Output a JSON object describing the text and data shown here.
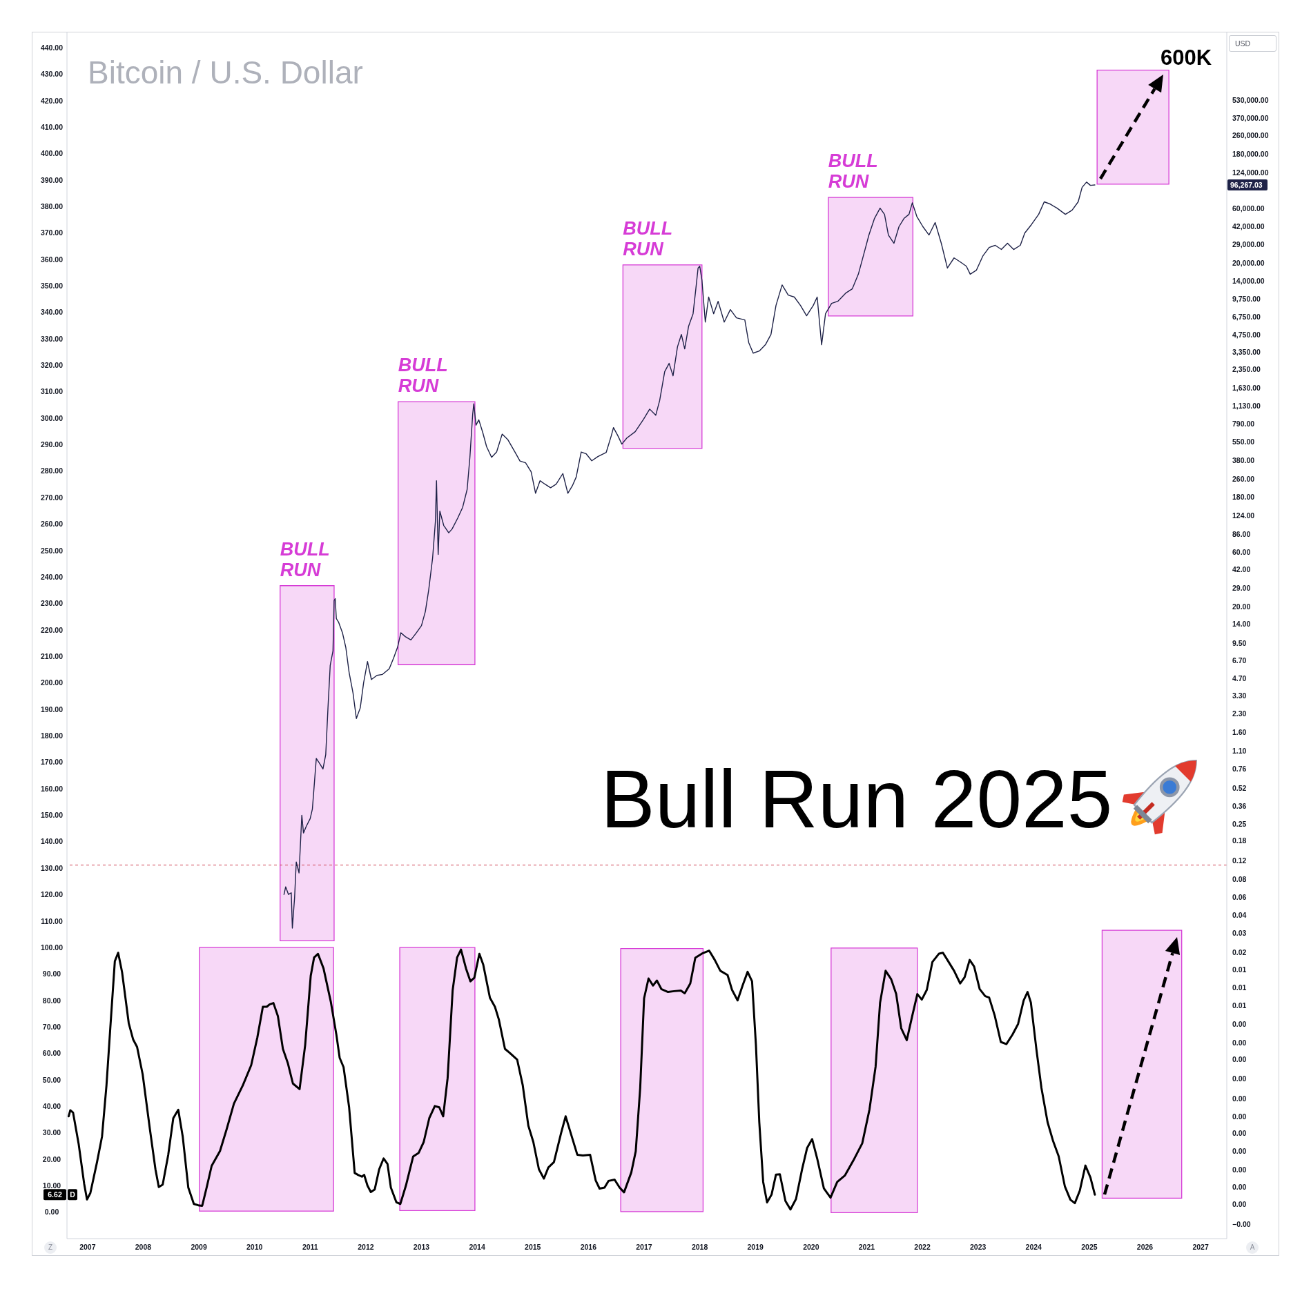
{
  "chart_data": {
    "type": "line",
    "title": "Bitcoin / U.S. Dollar",
    "subtitle": "Bull Run 2025",
    "y2label": "USD",
    "annotations": [
      "600K",
      "Z",
      "A"
    ],
    "log": "y2",
    "xlim": [
      2006.63,
      2027.47
    ],
    "xticks": [
      2007,
      2008,
      2009,
      2010,
      2011,
      2012,
      2013,
      2014,
      2015,
      2016,
      2017,
      2018,
      2019,
      2020,
      2021,
      2022,
      2023,
      2024,
      2025,
      2026,
      2027
    ],
    "ylim": [
      -10,
      446
    ],
    "yticks": [
      {
        "value": 0,
        "label": "0.00"
      },
      {
        "value": 6.62,
        "label": "6.62"
      },
      {
        "value": 10,
        "label": "10.00"
      },
      {
        "value": 20,
        "label": "20.00"
      },
      {
        "value": 30,
        "label": "30.00"
      },
      {
        "value": 40,
        "label": "40.00"
      },
      {
        "value": 50,
        "label": "50.00"
      },
      {
        "value": 60,
        "label": "60.00"
      },
      {
        "value": 70,
        "label": "70.00"
      },
      {
        "value": 80,
        "label": "80.00"
      },
      {
        "value": 90,
        "label": "90.00"
      },
      {
        "value": 100,
        "label": "100.00"
      },
      {
        "value": 110,
        "label": "110.00"
      },
      {
        "value": 120,
        "label": "120.00"
      },
      {
        "value": 130,
        "label": "130.00"
      },
      {
        "value": 140,
        "label": "140.00"
      },
      {
        "value": 150,
        "label": "150.00"
      },
      {
        "value": 160,
        "label": "160.00"
      },
      {
        "value": 170,
        "label": "170.00"
      },
      {
        "value": 180,
        "label": "180.00"
      },
      {
        "value": 190,
        "label": "190.00"
      },
      {
        "value": 200,
        "label": "200.00"
      },
      {
        "value": 210,
        "label": "210.00"
      },
      {
        "value": 220,
        "label": "220.00"
      },
      {
        "value": 230,
        "label": "230.00"
      },
      {
        "value": 240,
        "label": "240.00"
      },
      {
        "value": 250,
        "label": "250.00"
      },
      {
        "value": 260,
        "label": "260.00"
      },
      {
        "value": 270,
        "label": "270.00"
      },
      {
        "value": 280,
        "label": "280.00"
      },
      {
        "value": 290,
        "label": "290.00"
      },
      {
        "value": 300,
        "label": "300.00"
      },
      {
        "value": 310,
        "label": "310.00"
      },
      {
        "value": 320,
        "label": "320.00"
      },
      {
        "value": 330,
        "label": "330.00"
      },
      {
        "value": 340,
        "label": "340.00"
      },
      {
        "value": 350,
        "label": "350.00"
      },
      {
        "value": 360,
        "label": "360.00"
      },
      {
        "value": 370,
        "label": "370.00"
      },
      {
        "value": 380,
        "label": "380.00"
      },
      {
        "value": 390,
        "label": "390.00"
      },
      {
        "value": 400,
        "label": "400.00"
      },
      {
        "value": 410,
        "label": "410.00"
      },
      {
        "value": 420,
        "label": "420.00"
      },
      {
        "value": 430,
        "label": "430.00"
      },
      {
        "value": 440,
        "label": "440.00"
      }
    ],
    "y2lim": [
      6e-05,
      2100000
    ],
    "y2ticks": [
      {
        "value": 530000,
        "label": "530,000.00"
      },
      {
        "value": 370000,
        "label": "370,000.00"
      },
      {
        "value": 260000,
        "label": "260,000.00"
      },
      {
        "value": 180000,
        "label": "180,000.00"
      },
      {
        "value": 124000,
        "label": "124,000.00"
      },
      {
        "value": 96267.03,
        "label": "96,267.03"
      },
      {
        "value": 60000,
        "label": "60,000.00"
      },
      {
        "value": 42000,
        "label": "42,000.00"
      },
      {
        "value": 29000,
        "label": "29,000.00"
      },
      {
        "value": 20000,
        "label": "20,000.00"
      },
      {
        "value": 14000,
        "label": "14,000.00"
      },
      {
        "value": 9750,
        "label": "9,750.00"
      },
      {
        "value": 6750,
        "label": "6,750.00"
      },
      {
        "value": 4750,
        "label": "4,750.00"
      },
      {
        "value": 3350,
        "label": "3,350.00"
      },
      {
        "value": 2350,
        "label": "2,350.00"
      },
      {
        "value": 1630,
        "label": "1,630.00"
      },
      {
        "value": 1130,
        "label": "1,130.00"
      },
      {
        "value": 790,
        "label": "790.00"
      },
      {
        "value": 550,
        "label": "550.00"
      },
      {
        "value": 380,
        "label": "380.00"
      },
      {
        "value": 260,
        "label": "260.00"
      },
      {
        "value": 180,
        "label": "180.00"
      },
      {
        "value": 124,
        "label": "124.00"
      },
      {
        "value": 86,
        "label": "86.00"
      },
      {
        "value": 60,
        "label": "60.00"
      },
      {
        "value": 42,
        "label": "42.00"
      },
      {
        "value": 29,
        "label": "29.00"
      },
      {
        "value": 20,
        "label": "20.00"
      },
      {
        "value": 14,
        "label": "14.00"
      },
      {
        "value": 9.5,
        "label": "9.50"
      },
      {
        "value": 6.7,
        "label": "6.70"
      },
      {
        "value": 4.7,
        "label": "4.70"
      },
      {
        "value": 3.3,
        "label": "3.30"
      },
      {
        "value": 2.3,
        "label": "2.30"
      },
      {
        "value": 1.6,
        "label": "1.60"
      },
      {
        "value": 1.1,
        "label": "1.10"
      },
      {
        "value": 0.76,
        "label": "0.76"
      },
      {
        "value": 0.52,
        "label": "0.52"
      },
      {
        "value": 0.36,
        "label": "0.36"
      },
      {
        "value": 0.25,
        "label": "0.25"
      },
      {
        "value": 0.18,
        "label": "0.18"
      },
      {
        "value": 0.12,
        "label": "0.12"
      },
      {
        "value": 0.083,
        "label": "0.08"
      },
      {
        "value": 0.058,
        "label": "0.06"
      },
      {
        "value": 0.04,
        "label": "0.04"
      },
      {
        "value": 0.028,
        "label": "0.03"
      },
      {
        "value": 0.019,
        "label": "0.02"
      },
      {
        "value": 0.0135,
        "label": "0.01"
      },
      {
        "value": 0.0094,
        "label": "0.01"
      },
      {
        "value": 0.0065,
        "label": "0.01"
      },
      {
        "value": 0.0045,
        "label": "0.00"
      },
      {
        "value": 0.0031,
        "label": "0.00"
      },
      {
        "value": 0.0022,
        "label": "0.00"
      },
      {
        "value": 0.0015,
        "label": "0.00"
      },
      {
        "value": 0.001,
        "label": "0.00"
      },
      {
        "value": 0.0007,
        "label": "0.00"
      },
      {
        "value": 0.0005,
        "label": "0.00"
      },
      {
        "value": 0.00035,
        "label": "0.00"
      },
      {
        "value": 0.00024,
        "label": "0.00"
      },
      {
        "value": 0.00017,
        "label": "0.00"
      },
      {
        "value": 0.00012,
        "label": "0.00"
      },
      {
        "value": 8e-05,
        "label": "−0.00"
      }
    ],
    "ref_lines": [
      {
        "axis": "y2",
        "value": 0.11,
        "color": "#d04a5a",
        "line_style": "dashed"
      }
    ],
    "series": [
      {
        "type": "area",
        "axis": "y",
        "color": "#d63cd6",
        "x": [
          2009.01,
          2011.42
        ],
        "values": [
          null,
          null
        ],
        "lower": [
          0.4,
          0.4
        ],
        "upper": [
          100,
          100
        ]
      },
      {
        "type": "area",
        "axis": "y",
        "color": "#d63cd6",
        "x": [
          2012.61,
          2013.96
        ],
        "values": [
          null,
          null
        ],
        "lower": [
          0.6,
          0.6
        ],
        "upper": [
          100,
          100
        ]
      },
      {
        "type": "area",
        "axis": "y",
        "color": "#d63cd6",
        "x": [
          2016.58,
          2018.06
        ],
        "values": [
          null,
          null
        ],
        "lower": [
          0.2,
          0.2
        ],
        "upper": [
          99.6,
          99.6
        ]
      },
      {
        "type": "area",
        "axis": "y",
        "color": "#d63cd6",
        "x": [
          2020.36,
          2021.91
        ],
        "values": [
          null,
          null
        ],
        "lower": [
          -0.2,
          -0.2
        ],
        "upper": [
          99.8,
          99.8
        ]
      },
      {
        "type": "area",
        "axis": "y",
        "color": "#d63cd6",
        "x": [
          2025.23,
          2026.66
        ],
        "values": [
          null,
          null
        ],
        "lower": [
          5.3,
          5.3
        ],
        "upper": [
          106.5,
          106.5
        ]
      },
      {
        "type": "area",
        "axis": "y2",
        "name": "BULL RUN",
        "color": "#d63cd6",
        "x": [
          2010.46,
          2011.43
        ],
        "values": [
          null,
          null
        ],
        "lower": [
          0.024,
          0.024
        ],
        "upper": [
          30.4,
          30.4
        ]
      },
      {
        "type": "area",
        "axis": "y2",
        "name": "BULL RUN",
        "color": "#d63cd6",
        "x": [
          2012.58,
          2013.96
        ],
        "values": [
          null,
          null
        ],
        "lower": [
          6.2,
          6.2
        ],
        "upper": [
          1230,
          1230
        ]
      },
      {
        "type": "area",
        "axis": "y2",
        "name": "BULL RUN",
        "color": "#d63cd6",
        "x": [
          2016.62,
          2018.04
        ],
        "values": [
          null,
          null
        ],
        "lower": [
          480,
          480
        ],
        "upper": [
          19300,
          19300
        ]
      },
      {
        "type": "area",
        "axis": "y2",
        "name": "BULL RUN",
        "color": "#d63cd6",
        "x": [
          2020.31,
          2021.83
        ],
        "values": [
          null,
          null
        ],
        "lower": [
          6900,
          6900
        ],
        "upper": [
          75000,
          75000
        ]
      },
      {
        "type": "area",
        "axis": "y2",
        "color": "#d63cd6",
        "x": [
          2025.14,
          2026.43
        ],
        "values": [
          null,
          null
        ],
        "lower": [
          98000,
          98000
        ],
        "upper": [
          970000,
          970000
        ]
      },
      {
        "axis": "y2",
        "color": "#1e2247",
        "x": [
          2010.53,
          2010.56,
          2010.61,
          2010.66,
          2010.68,
          2010.72,
          2010.75,
          2010.8,
          2010.85,
          2010.88,
          2010.93,
          2011.0,
          2011.04,
          2011.11,
          2011.17,
          2011.23,
          2011.28,
          2011.32,
          2011.36,
          2011.41,
          2011.43,
          2011.45,
          2011.47,
          2011.51,
          2011.58,
          2011.64,
          2011.7,
          2011.77,
          2011.83,
          2011.9,
          2011.96,
          2012.03,
          2012.1,
          2012.2,
          2012.3,
          2012.42,
          2012.5,
          2012.57,
          2012.63,
          2012.71,
          2012.81,
          2012.91,
          2013.0,
          2013.07,
          2013.13,
          2013.2,
          2013.25,
          2013.27,
          2013.3,
          2013.33,
          2013.4,
          2013.49,
          2013.55,
          2013.65,
          2013.74,
          2013.82,
          2013.87,
          2013.92,
          2013.94,
          2013.98,
          2014.03,
          2014.1,
          2014.17,
          2014.26,
          2014.35,
          2014.45,
          2014.55,
          2014.68,
          2014.77,
          2014.87,
          2014.97,
          2015.05,
          2015.13,
          2015.22,
          2015.32,
          2015.42,
          2015.54,
          2015.63,
          2015.71,
          2015.78,
          2015.87,
          2015.96,
          2016.06,
          2016.17,
          2016.32,
          2016.41,
          2016.45,
          2016.53,
          2016.6,
          2016.69,
          2016.84,
          2016.99,
          2017.1,
          2017.21,
          2017.28,
          2017.37,
          2017.45,
          2017.52,
          2017.6,
          2017.67,
          2017.73,
          2017.8,
          2017.88,
          2017.93,
          2017.97,
          2018.0,
          2018.04,
          2018.1,
          2018.16,
          2018.25,
          2018.33,
          2018.44,
          2018.55,
          2018.66,
          2018.81,
          2018.88,
          2018.96,
          2019.07,
          2019.18,
          2019.28,
          2019.37,
          2019.48,
          2019.59,
          2019.7,
          2019.81,
          2019.92,
          2020.04,
          2020.11,
          2020.19,
          2020.26,
          2020.37,
          2020.48,
          2020.63,
          2020.74,
          2020.85,
          2020.94,
          2021.04,
          2021.14,
          2021.24,
          2021.32,
          2021.39,
          2021.49,
          2021.58,
          2021.67,
          2021.76,
          2021.82,
          2021.9,
          2022.01,
          2022.12,
          2022.23,
          2022.34,
          2022.45,
          2022.57,
          2022.68,
          2022.79,
          2022.86,
          2022.97,
          2023.09,
          2023.2,
          2023.31,
          2023.42,
          2023.53,
          2023.64,
          2023.76,
          2023.84,
          2023.96,
          2024.09,
          2024.19,
          2024.29,
          2024.42,
          2024.57,
          2024.69,
          2024.8,
          2024.87,
          2024.95,
          2025.02,
          2025.1
        ],
        "values": [
          0.061,
          0.071,
          0.061,
          0.063,
          0.031,
          0.057,
          0.117,
          0.094,
          0.3,
          0.21,
          0.24,
          0.28,
          0.34,
          0.94,
          0.85,
          0.76,
          1.02,
          2.6,
          6.1,
          8.2,
          22.5,
          23.4,
          15.7,
          14.6,
          11.8,
          8.8,
          5.3,
          3.5,
          2.1,
          2.6,
          4.3,
          6.6,
          4.6,
          5.0,
          5.1,
          5.7,
          7.1,
          8.8,
          11.8,
          10.9,
          10.2,
          11.8,
          13.6,
          18.1,
          27.9,
          53,
          110,
          251,
          57,
          136,
          102,
          88,
          95,
          118,
          147,
          210,
          402,
          953,
          1180,
          768,
          855,
          665,
          498,
          402,
          447,
          641,
          575,
          447,
          373,
          360,
          301,
          195,
          251,
          234,
          218,
          234,
          290,
          195,
          226,
          270,
          447,
          431,
          375,
          408,
          444,
          619,
          731,
          619,
          524,
          593,
          673,
          863,
          1060,
          938,
          1260,
          2250,
          2660,
          2070,
          3710,
          4760,
          3560,
          5620,
          7220,
          11900,
          18100,
          18800,
          14100,
          6110,
          10100,
          7220,
          9270,
          6110,
          7850,
          6650,
          6380,
          4040,
          3270,
          3410,
          3870,
          4760,
          8530,
          12900,
          10500,
          10100,
          8530,
          6930,
          8530,
          10100,
          3870,
          7220,
          8890,
          9270,
          11000,
          11900,
          16000,
          23200,
          35200,
          49100,
          60400,
          53300,
          35200,
          29800,
          41600,
          49100,
          53300,
          67300,
          51200,
          41600,
          35200,
          45200,
          29800,
          18100,
          22200,
          20500,
          18800,
          16000,
          17300,
          23200,
          27400,
          28600,
          26300,
          29800,
          26300,
          28600,
          36600,
          43400,
          53300,
          68600,
          65800,
          60400,
          53300,
          57900,
          68600,
          91600,
          102000,
          95500,
          96267.03
        ]
      },
      {
        "axis": "y",
        "name": "D",
        "color": "#000000",
        "x": [
          2006.66,
          2006.69,
          2006.74,
          2006.84,
          2006.94,
          2006.99,
          2007.05,
          2007.17,
          2007.26,
          2007.34,
          2007.41,
          2007.49,
          2007.55,
          2007.62,
          2007.74,
          2007.82,
          2007.89,
          2007.99,
          2008.12,
          2008.22,
          2008.28,
          2008.35,
          2008.45,
          2008.54,
          2008.63,
          2008.71,
          2008.81,
          2008.91,
          2008.99,
          2009.06,
          2009.14,
          2009.23,
          2009.38,
          2009.5,
          2009.63,
          2009.79,
          2009.94,
          2010.05,
          2010.15,
          2010.22,
          2010.27,
          2010.34,
          2010.42,
          2010.51,
          2010.6,
          2010.69,
          2010.81,
          2010.91,
          2011.01,
          2011.07,
          2011.14,
          2011.24,
          2011.37,
          2011.47,
          2011.53,
          2011.6,
          2011.7,
          2011.8,
          2011.86,
          2011.93,
          2011.97,
          2012.03,
          2012.09,
          2012.16,
          2012.24,
          2012.32,
          2012.39,
          2012.45,
          2012.55,
          2012.62,
          2012.72,
          2012.85,
          2012.95,
          2013.04,
          2013.14,
          2013.24,
          2013.32,
          2013.39,
          2013.47,
          2013.56,
          2013.64,
          2013.71,
          2013.8,
          2013.88,
          2013.95,
          2014.04,
          2014.11,
          2014.23,
          2014.32,
          2014.39,
          2014.5,
          2014.59,
          2014.72,
          2014.82,
          2014.92,
          2015.01,
          2015.11,
          2015.2,
          2015.28,
          2015.38,
          2015.51,
          2015.59,
          2015.68,
          2015.8,
          2015.9,
          2016.03,
          2016.13,
          2016.2,
          2016.29,
          2016.36,
          2016.47,
          2016.56,
          2016.64,
          2016.77,
          2016.85,
          2016.93,
          2017.0,
          2017.08,
          2017.16,
          2017.23,
          2017.31,
          2017.43,
          2017.54,
          2017.66,
          2017.73,
          2017.83,
          2017.92,
          2018.04,
          2018.17,
          2018.27,
          2018.37,
          2018.5,
          2018.58,
          2018.68,
          2018.77,
          2018.86,
          2018.94,
          2019.01,
          2019.07,
          2019.14,
          2019.21,
          2019.29,
          2019.37,
          2019.44,
          2019.54,
          2019.63,
          2019.73,
          2019.84,
          2019.93,
          2020.02,
          2020.11,
          2020.23,
          2020.35,
          2020.47,
          2020.61,
          2020.76,
          2020.92,
          2021.05,
          2021.16,
          2021.24,
          2021.34,
          2021.44,
          2021.53,
          2021.62,
          2021.72,
          2021.82,
          2021.91,
          2021.99,
          2022.08,
          2022.18,
          2022.3,
          2022.37,
          2022.45,
          2022.57,
          2022.68,
          2022.76,
          2022.85,
          2022.93,
          2023.03,
          2023.13,
          2023.2,
          2023.3,
          2023.41,
          2023.51,
          2023.62,
          2023.72,
          2023.82,
          2023.89,
          2023.95,
          2024.05,
          2024.14,
          2024.25,
          2024.35,
          2024.45,
          2024.56,
          2024.66,
          2024.74,
          2024.83,
          2024.93,
          2025.02,
          2025.1
        ],
        "values": [
          36.2,
          38.5,
          37.6,
          25.8,
          10.6,
          4.8,
          7.2,
          18.9,
          28.6,
          47.9,
          70.0,
          94.8,
          98.0,
          90.7,
          71.4,
          65.2,
          62.4,
          52.1,
          31.4,
          16.2,
          9.5,
          10.4,
          21.7,
          35.5,
          38.7,
          28.6,
          9.3,
          3.1,
          2.6,
          2.4,
          9.3,
          17.5,
          23.1,
          31.4,
          41.0,
          47.9,
          55.5,
          65.9,
          77.6,
          77.6,
          78.5,
          79.0,
          74.1,
          61.7,
          56.2,
          48.6,
          46.5,
          63.1,
          89.3,
          96.2,
          97.6,
          92.1,
          79.6,
          67.2,
          58.3,
          54.8,
          39.6,
          14.8,
          14.1,
          13.4,
          14.1,
          10.0,
          7.6,
          8.6,
          16.2,
          20.3,
          18.2,
          9.3,
          3.7,
          3.1,
          10.0,
          21.0,
          22.4,
          26.5,
          35.5,
          40.1,
          39.6,
          36.2,
          50.7,
          83.8,
          96.2,
          99.2,
          92.1,
          87.2,
          88.6,
          97.6,
          93.5,
          81.0,
          77.6,
          72.8,
          61.7,
          60.1,
          57.6,
          47.9,
          32.7,
          26.5,
          16.2,
          12.7,
          16.9,
          18.9,
          30.0,
          36.2,
          30.0,
          21.7,
          21.4,
          21.7,
          12.0,
          8.9,
          9.3,
          11.8,
          12.3,
          9.3,
          7.5,
          15.0,
          23.0,
          46.9,
          80.8,
          88.3,
          85.6,
          87.5,
          84.3,
          83.2,
          83.5,
          83.7,
          82.7,
          86.4,
          96.1,
          97.7,
          98.8,
          95.3,
          91.2,
          89.6,
          84.0,
          80.0,
          85.6,
          90.8,
          87.2,
          63.0,
          34.0,
          11.4,
          3.7,
          6.6,
          14.2,
          14.3,
          4.2,
          1.0,
          5.0,
          16.3,
          24.3,
          27.6,
          20.3,
          9.0,
          5.5,
          11.4,
          13.9,
          19.5,
          26.0,
          38.8,
          55.0,
          79.1,
          91.2,
          88.0,
          82.4,
          69.5,
          65.0,
          74.3,
          82.4,
          80.3,
          84.0,
          94.5,
          97.7,
          98.0,
          95.3,
          91.2,
          86.4,
          88.8,
          95.3,
          92.8,
          84.3,
          81.6,
          81.1,
          74.3,
          64.3,
          63.5,
          67.1,
          71.1,
          80.0,
          83.2,
          79.2,
          61.4,
          46.9,
          34.0,
          26.8,
          21.1,
          9.8,
          4.7,
          3.4,
          8.2,
          17.6,
          13.1,
          6.62
        ]
      }
    ]
  }
}
